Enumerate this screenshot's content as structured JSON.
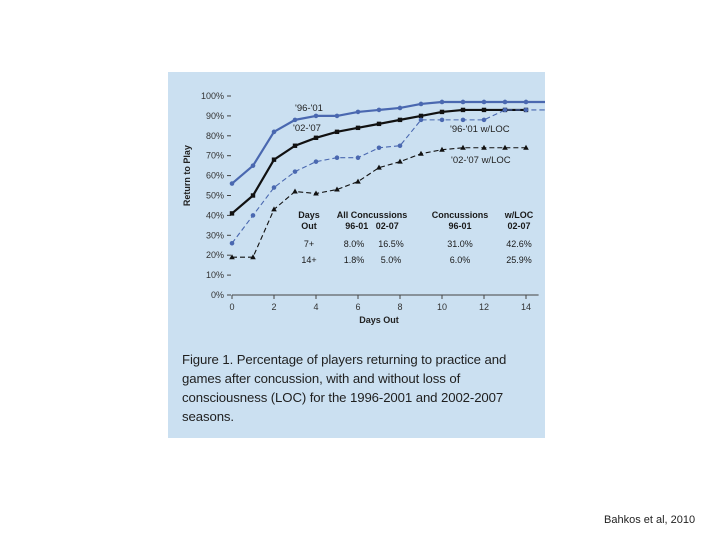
{
  "chart_data": {
    "type": "line",
    "xlabel": "Days Out",
    "ylabel": "Return to Play",
    "xlim": [
      0,
      15
    ],
    "ylim": [
      0,
      100
    ],
    "x_ticks": [
      0,
      2,
      4,
      6,
      8,
      10,
      12,
      14
    ],
    "y_ticks": [
      "0%",
      "10%",
      "20%",
      "30%",
      "40%",
      "50%",
      "60%",
      "70%",
      "80%",
      "90%",
      "100%"
    ],
    "series": [
      {
        "name": "'96-'01",
        "color": "#4a68b0",
        "style": "solid",
        "marker": "circle",
        "x": [
          0,
          1,
          2,
          3,
          4,
          5,
          6,
          7,
          8,
          9,
          10,
          11,
          12,
          13,
          14,
          15
        ],
        "values": [
          56,
          65,
          82,
          88,
          90,
          90,
          92,
          93,
          94,
          96,
          97,
          97,
          97,
          97,
          97,
          97
        ]
      },
      {
        "name": "'02-'07",
        "color": "#111111",
        "style": "solid",
        "marker": "square",
        "x": [
          0,
          1,
          2,
          3,
          4,
          5,
          6,
          7,
          8,
          9,
          10,
          11,
          12,
          13,
          14
        ],
        "values": [
          41,
          50,
          68,
          75,
          79,
          82,
          84,
          86,
          88,
          90,
          92,
          93,
          93,
          93,
          93
        ]
      },
      {
        "name": "'96-'01 w/LOC",
        "color": "#4a68b0",
        "style": "dashed",
        "marker": "circle",
        "x": [
          0,
          1,
          2,
          3,
          4,
          5,
          6,
          7,
          8,
          9,
          10,
          11,
          12,
          13,
          14,
          15
        ],
        "values": [
          26,
          40,
          54,
          62,
          67,
          69,
          69,
          74,
          75,
          88,
          88,
          88,
          88,
          93,
          93,
          93
        ]
      },
      {
        "name": "'02-'07 w/LOC",
        "color": "#111111",
        "style": "dashed",
        "marker": "triangle",
        "x": [
          0,
          1,
          2,
          3,
          4,
          5,
          6,
          7,
          8,
          9,
          10,
          11,
          12,
          13,
          14
        ],
        "values": [
          19,
          19,
          43,
          52,
          51,
          53,
          57,
          64,
          67,
          71,
          73,
          74,
          74,
          74,
          74
        ]
      }
    ],
    "inset_table": {
      "headers": {
        "days": [
          "Days",
          "Out"
        ],
        "all": [
          "All Concussions",
          "96-01   02-07"
        ],
        "conc": [
          "Concussions",
          "96-01"
        ],
        "loc": [
          "w/LOC",
          "02-07"
        ]
      },
      "rows": [
        {
          "days": "7+",
          "a1": "8.0%",
          "a2": "16.5%",
          "c1": "31.0%",
          "l1": "42.6%"
        },
        {
          "days": "14+",
          "a1": "1.8%",
          "a2": "5.0%",
          "c1": "6.0%",
          "l1": "25.9%"
        }
      ]
    }
  },
  "caption": {
    "text": "Figure 1. Percentage of players returning to practice and games after concussion, with and without loss of consciousness (LOC) for the 1996-2001 and 2002-2007 seasons."
  },
  "citation": "Bahkos et al, 2010",
  "colors": {
    "panel_bg": "#cbe0f1",
    "blue_series": "#4a68b0",
    "black_series": "#111111"
  }
}
